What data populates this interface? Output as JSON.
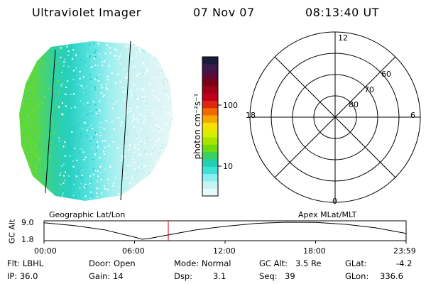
{
  "header": {
    "instrument": "Ultraviolet Imager",
    "date": "07 Nov 07",
    "time": "08:13:40 UT"
  },
  "colorbar": {
    "unit_label": "photon cm⁻²s⁻¹",
    "ticks": [
      "100",
      "10"
    ],
    "colors": [
      "#1a1a3a",
      "#3a1a4a",
      "#5a0a3a",
      "#7a0016",
      "#a00018",
      "#c0001c",
      "#e02810",
      "#f06a00",
      "#f4a800",
      "#f8e000",
      "#d8ee00",
      "#a8e400",
      "#70da10",
      "#38d060",
      "#20d0b0",
      "#40e0d8",
      "#8ceeee",
      "#c4f4f4",
      "#e6fafa"
    ]
  },
  "polar": {
    "mlt_labels": [
      "12",
      "18",
      "6",
      "0"
    ],
    "lat_labels": [
      "60",
      "70",
      "80"
    ]
  },
  "gc_alt_plot": {
    "ylabel": "GC Alt",
    "y_ticks": [
      "9.0",
      "1.8"
    ],
    "x_ticks": [
      "00:00",
      "06:00",
      "12:00",
      "18:00",
      "23:59"
    ],
    "left_caption": "Geographic Lat/Lon",
    "right_caption": "Apex MLat/MLT"
  },
  "chart_data": {
    "type": "line",
    "title": "GC Alt",
    "x": [
      0,
      2,
      4,
      6,
      6.5,
      7,
      8,
      10,
      12,
      14,
      16,
      18,
      20,
      22,
      23.98
    ],
    "y": [
      8.8,
      7.6,
      5.8,
      2.7,
      1.8,
      2.2,
      3.4,
      5.7,
      7.3,
      8.5,
      9.0,
      8.9,
      8.1,
      6.6,
      4.3
    ],
    "ylim": [
      1.8,
      9.0
    ],
    "xlim": [
      0,
      23.98
    ],
    "marker_time": 8.23,
    "marker_color": "#cc0000"
  },
  "info": {
    "flt": "Flt: LBHL",
    "ip": "IP: 36.0",
    "door": "Door: Open",
    "gain": "Gain: 14",
    "mode": "Mode: Normal",
    "dsp_label": "Dsp:",
    "dsp_value": "3.1",
    "gc_alt_label": "GC Alt:",
    "gc_alt_value": "3.5 Re",
    "seq_label": "Seq:",
    "seq_value": "39",
    "glat_label": "GLat:",
    "glat_value": "-4.2",
    "glon_label": "GLon:",
    "glon_value": "336.6"
  }
}
